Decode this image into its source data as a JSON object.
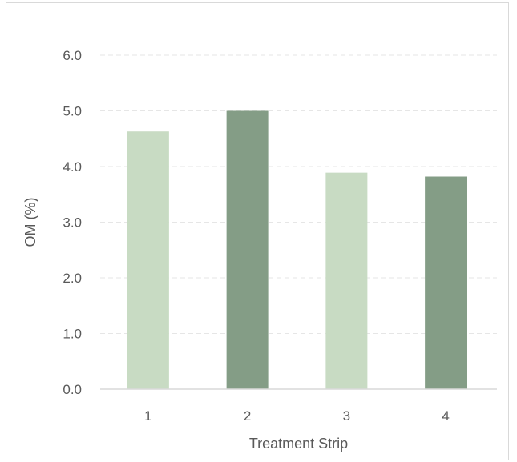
{
  "chart_data": {
    "type": "bar",
    "title": "",
    "xlabel": "Treatment Strip",
    "ylabel": "OM (%)",
    "categories": [
      "1",
      "2",
      "3",
      "4"
    ],
    "values": [
      4.63,
      5.0,
      3.89,
      3.82
    ],
    "ylim": [
      0,
      6
    ],
    "yticks": [
      "0.0",
      "1.0",
      "2.0",
      "3.0",
      "4.0",
      "5.0",
      "6.0"
    ],
    "grid": true,
    "legend": "none",
    "bar_colors": [
      "#c8dbc3",
      "#849d86",
      "#c8dbc3",
      "#849d86"
    ],
    "gridline_color": "#e6e6e6",
    "axis_color": "#d9d9d9"
  }
}
